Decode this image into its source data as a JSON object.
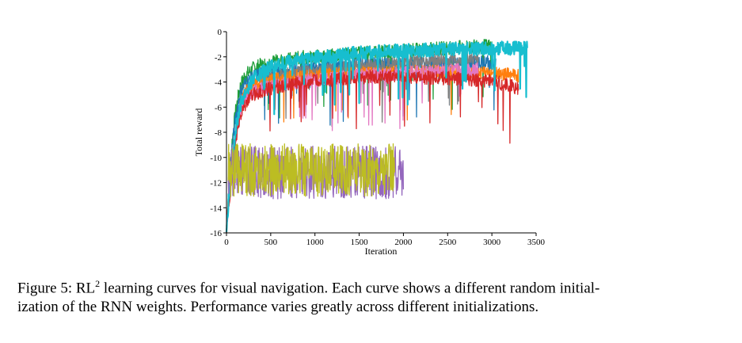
{
  "chart_data": {
    "type": "line",
    "xlabel": "Iteration",
    "ylabel": "Total reward",
    "xlim": [
      0,
      3500
    ],
    "ylim": [
      -16,
      0
    ],
    "xticks": [
      0,
      500,
      1000,
      1500,
      2000,
      2500,
      3000,
      3500
    ],
    "yticks": [
      0,
      -2,
      -4,
      -6,
      -8,
      -10,
      -12,
      -14,
      -16
    ],
    "grid": false,
    "legend": "none",
    "series": [
      {
        "color": "#1f9e3a",
        "x": [
          0,
          30,
          60,
          100,
          150,
          200,
          300,
          400,
          500,
          700,
          900,
          1200,
          1500,
          2000,
          2500,
          3000
        ],
        "y": [
          -15.5,
          -12,
          -9,
          -6.5,
          -4.5,
          -3.6,
          -2.9,
          -2.6,
          -2.4,
          -2.2,
          -2.0,
          -1.9,
          -1.7,
          -1.5,
          -1.3,
          -1.1
        ]
      },
      {
        "color": "#1f77b4",
        "x": [
          0,
          30,
          60,
          100,
          150,
          200,
          300,
          400,
          500,
          700,
          900,
          1200,
          1500,
          2000,
          2500,
          2900,
          3050
        ],
        "y": [
          -15.5,
          -12.5,
          -9.5,
          -7,
          -5,
          -4.2,
          -3.6,
          -3.3,
          -3.1,
          -3.0,
          -2.9,
          -2.8,
          -2.6,
          -2.5,
          -2.5,
          -2.4,
          -2.5
        ]
      },
      {
        "color": "#7f7f7f",
        "x": [
          0,
          30,
          60,
          100,
          150,
          200,
          300,
          400,
          500,
          700,
          900,
          1200,
          1500,
          2000,
          2500,
          2850
        ],
        "y": [
          -15.5,
          -13,
          -11,
          -8.5,
          -6,
          -4.8,
          -4.2,
          -3.8,
          -3.6,
          -3.4,
          -3.2,
          -3.0,
          -2.8,
          -2.5,
          -2.2,
          -2.1
        ]
      },
      {
        "color": "#ff7f0e",
        "x": [
          0,
          30,
          60,
          100,
          150,
          200,
          300,
          400,
          500,
          700,
          900,
          1200,
          1500,
          2000,
          2500,
          3000,
          3300
        ],
        "y": [
          -15.5,
          -13,
          -10.5,
          -8,
          -6,
          -5,
          -4.3,
          -4.0,
          -3.8,
          -3.6,
          -3.5,
          -3.4,
          -3.3,
          -3.2,
          -3.2,
          -3.3,
          -3.5
        ]
      },
      {
        "color": "#e377c2",
        "x": [
          0,
          30,
          60,
          100,
          150,
          200,
          300,
          400,
          500,
          700,
          900,
          1200,
          1500,
          2000,
          2500,
          2850
        ],
        "y": [
          -15.5,
          -13.5,
          -11,
          -8.5,
          -6.5,
          -5.4,
          -4.8,
          -4.5,
          -4.3,
          -4.1,
          -3.9,
          -3.7,
          -3.5,
          -3.3,
          -3.1,
          -3.0
        ]
      },
      {
        "color": "#d62728",
        "x": [
          0,
          30,
          60,
          100,
          150,
          200,
          300,
          400,
          500,
          700,
          900,
          1200,
          1500,
          2000,
          2500,
          3000,
          3300
        ],
        "y": [
          -15.5,
          -13.5,
          -11.5,
          -9,
          -7,
          -5.8,
          -5.0,
          -4.7,
          -4.5,
          -4.2,
          -4.0,
          -3.8,
          -3.6,
          -3.6,
          -3.7,
          -3.9,
          -4.5
        ]
      },
      {
        "color": "#17becf",
        "x": [
          0,
          30,
          60,
          100,
          150,
          200,
          300,
          400,
          500,
          700,
          900,
          1200,
          1500,
          2000,
          2500,
          3000,
          3400
        ],
        "y": [
          -15.5,
          -13,
          -10.5,
          -8,
          -6,
          -5.0,
          -3.8,
          -3.2,
          -2.8,
          -2.4,
          -2.1,
          -1.9,
          -1.7,
          -1.5,
          -1.4,
          -1.3,
          -1.3
        ]
      },
      {
        "color": "#9467bd",
        "x": [
          20,
          500,
          1000,
          1500,
          2000
        ],
        "y": [
          -11.2,
          -11.2,
          -11.2,
          -11.2,
          -11.2
        ]
      },
      {
        "color": "#bcbd22",
        "x": [
          20,
          500,
          1000,
          1500,
          1900
        ],
        "y": [
          -11.0,
          -11.0,
          -11.0,
          -11.0,
          -11.0
        ]
      }
    ]
  },
  "caption": {
    "prefix": "Figure 5: RL",
    "superscript": "2",
    "line1_rest": " learning curves for visual navigation.  Each curve shows a different random initial-",
    "line2": "ization of the RNN weights. Performance varies greatly across different initializations."
  }
}
